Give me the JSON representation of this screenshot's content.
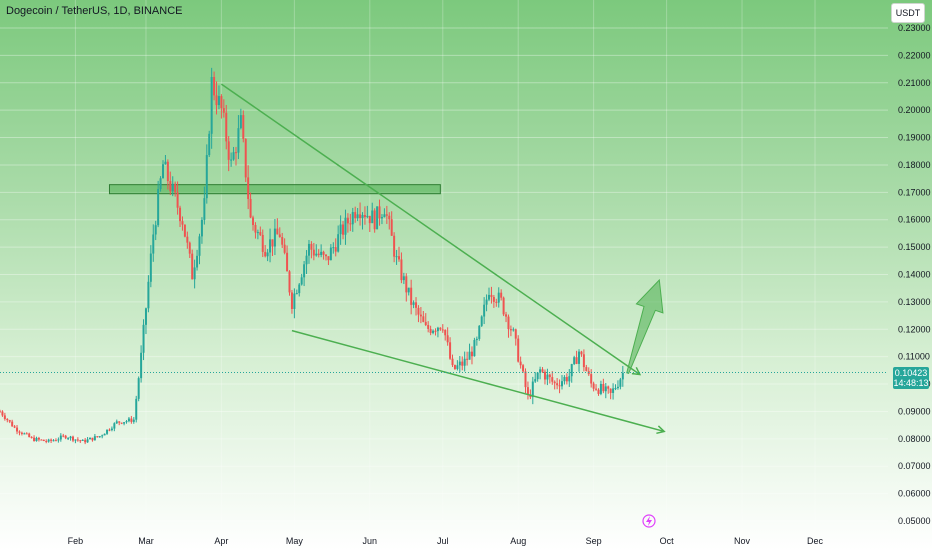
{
  "header": {
    "title": "Dogecoin / TetherUS, 1D, BINANCE",
    "currency_button": "USDT"
  },
  "price_label": {
    "value": "0.10423",
    "countdown": "14:48:13"
  },
  "colors": {
    "up": "#26a69a",
    "down": "#ef5350",
    "pattern": "#4caf50",
    "zone": "#4caf50"
  },
  "chart_data": {
    "type": "candlestick",
    "symbol": "DOGEUSDT",
    "y_ticks": [
      "0.23000",
      "0.22000",
      "0.21000",
      "0.20000",
      "0.19000",
      "0.18000",
      "0.17000",
      "0.16000",
      "0.15000",
      "0.14000",
      "0.13000",
      "0.12000",
      "0.11000",
      "0.10000",
      "0.09000",
      "0.08000",
      "0.07000",
      "0.06000",
      "0.05000"
    ],
    "x_ticks": [
      "Feb",
      "Mar",
      "Apr",
      "May",
      "Jun",
      "Jul",
      "Aug",
      "Sep",
      "Oct",
      "Nov",
      "Dec"
    ],
    "ylim": [
      0.0497,
      0.2335
    ],
    "x_start": "2024-01-01",
    "x_end": "2024-12-31",
    "last_price": 0.10423,
    "close_path": [
      [
        "2024-01-01",
        0.09
      ],
      [
        "2024-01-07",
        0.084
      ],
      [
        "2024-01-14",
        0.08
      ],
      [
        "2024-01-21",
        0.079
      ],
      [
        "2024-01-28",
        0.081
      ],
      [
        "2024-02-04",
        0.079
      ],
      [
        "2024-02-11",
        0.081
      ],
      [
        "2024-02-18",
        0.086
      ],
      [
        "2024-02-25",
        0.087
      ],
      [
        "2024-02-28",
        0.11
      ],
      [
        "2024-03-04",
        0.155
      ],
      [
        "2024-03-08",
        0.18
      ],
      [
        "2024-03-12",
        0.17
      ],
      [
        "2024-03-16",
        0.16
      ],
      [
        "2024-03-20",
        0.14
      ],
      [
        "2024-03-25",
        0.165
      ],
      [
        "2024-03-28",
        0.21
      ],
      [
        "2024-04-01",
        0.2
      ],
      [
        "2024-04-05",
        0.18
      ],
      [
        "2024-04-09",
        0.195
      ],
      [
        "2024-04-13",
        0.16
      ],
      [
        "2024-04-19",
        0.15
      ],
      [
        "2024-04-25",
        0.155
      ],
      [
        "2024-04-30",
        0.13
      ],
      [
        "2024-05-07",
        0.15
      ],
      [
        "2024-05-14",
        0.145
      ],
      [
        "2024-05-20",
        0.155
      ],
      [
        "2024-05-27",
        0.165
      ],
      [
        "2024-06-03",
        0.16
      ],
      [
        "2024-06-07",
        0.165
      ],
      [
        "2024-06-12",
        0.145
      ],
      [
        "2024-06-18",
        0.13
      ],
      [
        "2024-06-24",
        0.12
      ],
      [
        "2024-07-01",
        0.122
      ],
      [
        "2024-07-05",
        0.105
      ],
      [
        "2024-07-10",
        0.108
      ],
      [
        "2024-07-15",
        0.115
      ],
      [
        "2024-07-20",
        0.135
      ],
      [
        "2024-07-25",
        0.13
      ],
      [
        "2024-07-30",
        0.118
      ],
      [
        "2024-08-05",
        0.095
      ],
      [
        "2024-08-10",
        0.105
      ],
      [
        "2024-08-16",
        0.1
      ],
      [
        "2024-08-22",
        0.103
      ],
      [
        "2024-08-26",
        0.112
      ],
      [
        "2024-08-31",
        0.1
      ],
      [
        "2024-09-04",
        0.098
      ],
      [
        "2024-09-08",
        0.096
      ],
      [
        "2024-09-13",
        0.104
      ]
    ],
    "annotations": {
      "resistance_zone": {
        "date_start": "2024-02-15",
        "date_end": "2024-06-30",
        "price_low": 0.1695,
        "price_high": 0.1728
      },
      "upper_trendline": [
        [
          "2024-04-01",
          0.2095
        ],
        [
          "2024-09-20",
          0.1035
        ]
      ],
      "lower_trendline": [
        [
          "2024-04-30",
          0.1195
        ],
        [
          "2024-09-30",
          0.0827
        ]
      ],
      "arrow_up": {
        "from": [
          "2024-09-15",
          0.104
        ],
        "to": [
          "2024-09-28",
          0.138
        ]
      }
    }
  }
}
